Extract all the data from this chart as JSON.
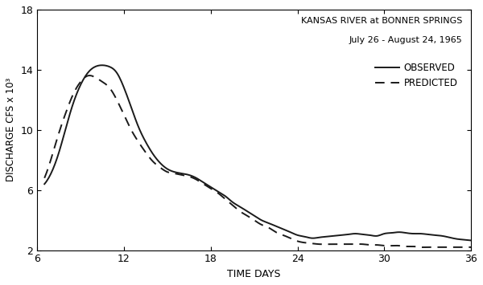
{
  "title_line1": "KANSAS RIVER at BONNER SPRINGS",
  "title_line2": "July 26 - August 24, 1965",
  "legend_observed": "OBSERVED",
  "legend_predicted": "PREDICTED",
  "xlabel": "TIME DAYS",
  "ylabel": "DISCHARGE CFS x 10³",
  "xlim": [
    6,
    36
  ],
  "ylim": [
    2,
    18
  ],
  "xticks": [
    6,
    12,
    18,
    24,
    30,
    36
  ],
  "yticks": [
    2,
    6,
    10,
    14,
    18
  ],
  "observed_x": [
    6.5,
    7,
    7.5,
    8,
    8.5,
    9,
    9.5,
    10,
    10.5,
    11,
    11.5,
    12,
    12.5,
    13,
    13.5,
    14,
    14.5,
    15,
    15.5,
    16,
    16.5,
    17,
    17.5,
    18,
    18.5,
    19,
    19.5,
    20,
    20.5,
    21,
    21.5,
    22,
    22.5,
    23,
    23.5,
    24,
    24.5,
    25,
    25.5,
    26,
    26.5,
    27,
    27.5,
    28,
    28.5,
    29,
    29.5,
    30,
    30.5,
    31,
    31.5,
    32,
    32.5,
    33,
    33.5,
    34,
    34.5,
    35,
    35.5,
    36
  ],
  "observed_y": [
    6.4,
    7.2,
    8.5,
    10.2,
    11.8,
    13.0,
    13.8,
    14.2,
    14.3,
    14.2,
    13.8,
    12.8,
    11.5,
    10.2,
    9.2,
    8.4,
    7.8,
    7.4,
    7.2,
    7.1,
    7.0,
    6.8,
    6.5,
    6.2,
    5.9,
    5.6,
    5.2,
    4.9,
    4.6,
    4.3,
    4.0,
    3.8,
    3.6,
    3.4,
    3.2,
    3.0,
    2.9,
    2.8,
    2.85,
    2.9,
    2.95,
    3.0,
    3.05,
    3.1,
    3.05,
    3.0,
    2.95,
    3.1,
    3.15,
    3.2,
    3.15,
    3.1,
    3.1,
    3.05,
    3.0,
    2.95,
    2.85,
    2.75,
    2.7,
    2.65
  ],
  "predicted_x": [
    6.5,
    7,
    7.5,
    8,
    8.5,
    9,
    9.5,
    10,
    10.5,
    11,
    11.5,
    12,
    12.5,
    13,
    13.5,
    14,
    14.5,
    15,
    15.5,
    16,
    16.5,
    17,
    17.5,
    18,
    18.5,
    19,
    19.5,
    20,
    20.5,
    21,
    21.5,
    22,
    22.5,
    23,
    23.5,
    24,
    24.5,
    25,
    25.5,
    26,
    26.5,
    27,
    27.5,
    28,
    28.5,
    29,
    29.5,
    30,
    30.5,
    31,
    31.5,
    32,
    32.5,
    33,
    33.5,
    34,
    34.5,
    35,
    35.5,
    36
  ],
  "predicted_y": [
    6.8,
    8.2,
    9.8,
    11.2,
    12.4,
    13.2,
    13.6,
    13.5,
    13.2,
    12.8,
    12.0,
    11.0,
    10.0,
    9.2,
    8.5,
    7.9,
    7.5,
    7.2,
    7.1,
    7.0,
    6.9,
    6.7,
    6.4,
    6.1,
    5.8,
    5.4,
    5.0,
    4.6,
    4.3,
    4.0,
    3.7,
    3.5,
    3.2,
    3.0,
    2.8,
    2.6,
    2.5,
    2.45,
    2.4,
    2.4,
    2.4,
    2.4,
    2.4,
    2.4,
    2.4,
    2.35,
    2.35,
    2.3,
    2.3,
    2.3,
    2.25,
    2.25,
    2.2,
    2.2,
    2.2,
    2.2,
    2.2,
    2.2,
    2.2,
    2.2
  ],
  "background_color": "#f0f0f0",
  "line_color": "#1a1a1a"
}
